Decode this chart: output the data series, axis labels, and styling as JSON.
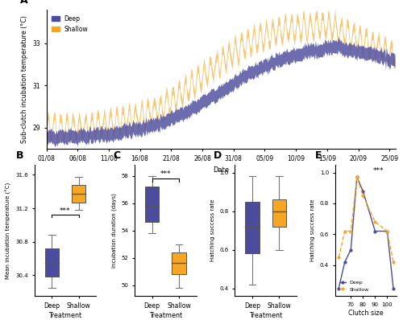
{
  "panel_A": {
    "ylabel": "Sub-clutch incubation temperature (°C)",
    "xlabel": "Date",
    "x_labels": [
      "01/08",
      "06/08",
      "11/08",
      "16/08",
      "21/08",
      "26/08",
      "31/08",
      "05/09",
      "10/09",
      "15/09",
      "20/09",
      "25/09"
    ],
    "ylim": [
      28.0,
      34.6
    ],
    "yticks": [
      29,
      31,
      33
    ],
    "deep_color": "#4c4c9e",
    "shallow_color": "#f5a623"
  },
  "panel_B": {
    "ylabel": "Mean incubation temperature (°C)",
    "xlabel": "Treatment",
    "deep_box": {
      "whislo": 30.25,
      "q1": 30.38,
      "med": 30.55,
      "q3": 30.72,
      "whishi": 30.88
    },
    "shallow_box": {
      "whislo": 31.18,
      "q1": 31.27,
      "med": 31.37,
      "q3": 31.48,
      "whishi": 31.58
    },
    "ylim": [
      30.15,
      31.72
    ],
    "yticks": [
      30.4,
      30.8,
      31.2,
      31.6
    ],
    "sig": "***",
    "sig_y": 31.12,
    "deep_color": "#4c4c9e",
    "shallow_color": "#f5a623"
  },
  "panel_C": {
    "ylabel": "Incubation duration (days)",
    "xlabel": "Treatment",
    "deep_box": {
      "whislo": 53.8,
      "q1": 54.6,
      "med": 55.8,
      "q3": 57.2,
      "whishi": 58.0
    },
    "shallow_box": {
      "whislo": 49.8,
      "q1": 50.8,
      "med": 51.6,
      "q3": 52.4,
      "whishi": 53.0
    },
    "ylim": [
      49.2,
      58.8
    ],
    "yticks": [
      50,
      52,
      54,
      56,
      58
    ],
    "sig": "***",
    "sig_y": 57.8,
    "deep_color": "#4c4c9e",
    "shallow_color": "#f5a623"
  },
  "panel_D": {
    "ylabel": "Hatching success rate",
    "xlabel": "Treatment",
    "deep_box": {
      "whislo": 0.42,
      "q1": 0.58,
      "med": 0.72,
      "q3": 0.85,
      "whishi": 0.98
    },
    "shallow_box": {
      "whislo": 0.6,
      "q1": 0.72,
      "med": 0.8,
      "q3": 0.86,
      "whishi": 0.98
    },
    "ylim": [
      0.36,
      1.04
    ],
    "yticks": [
      0.4,
      0.6,
      0.8,
      1.0
    ],
    "deep_color": "#4c4c9e",
    "shallow_color": "#f5a623"
  },
  "panel_E": {
    "ylabel": "Hatching success rate",
    "xlabel": "Clutch size",
    "deep_x": [
      60,
      65,
      70,
      75,
      80,
      90,
      100,
      105
    ],
    "deep_y": [
      0.25,
      0.42,
      0.5,
      0.97,
      0.88,
      0.62,
      0.62,
      0.25
    ],
    "shallow_x": [
      60,
      65,
      70,
      75,
      80,
      90,
      100,
      105
    ],
    "shallow_y": [
      0.45,
      0.62,
      0.62,
      0.97,
      0.85,
      0.68,
      0.62,
      0.42
    ],
    "ylim": [
      0.2,
      1.05
    ],
    "yticks": [
      0.4,
      0.6,
      0.8,
      1.0
    ],
    "xticks": [
      70,
      80,
      90,
      100
    ],
    "sig": "***",
    "deep_color": "#4c4c9e",
    "shallow_color": "#f5a623"
  }
}
